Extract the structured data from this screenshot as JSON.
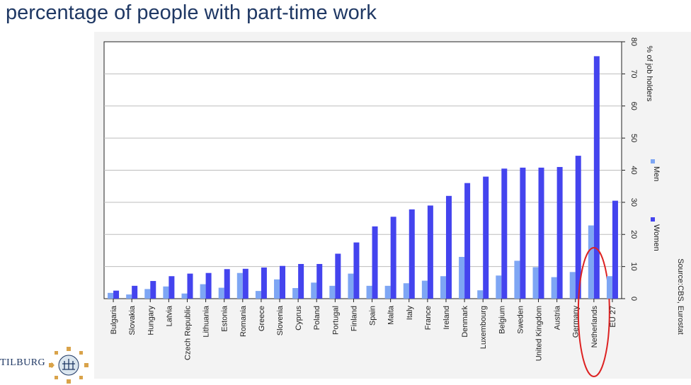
{
  "page": {
    "title": "percentage of people with part-time work"
  },
  "logo": {
    "text": "TILBURG",
    "icon": "university-seal-icon"
  },
  "source": "Source:CBS, Eurostat",
  "colors": {
    "women": "#4444ee",
    "men": "#7ea6f4",
    "highlight": "#dd2222",
    "title": "#1f3864"
  },
  "chart_data": {
    "type": "bar",
    "ylabel": "% of job holders",
    "ylim": [
      0,
      80
    ],
    "yticks": [
      0,
      10,
      20,
      30,
      40,
      50,
      60,
      70,
      80
    ],
    "grid": true,
    "legend_position": "right",
    "highlighted_category": "Netherlands",
    "categories": [
      "Bulgaria",
      "Slovakia",
      "Hungary",
      "Latvia",
      "Czech Republic",
      "Lithuania",
      "Estonia",
      "Romania",
      "Greece",
      "Slovenia",
      "Cyprus",
      "Poland",
      "Portugal",
      "Finland",
      "Spain",
      "Malta",
      "Italy",
      "France",
      "Ireland",
      "Denmark",
      "Luxembourg",
      "Belgium",
      "Sweden",
      "United Kingdom",
      "Austria",
      "Germany",
      "Netherlands",
      "EU 27"
    ],
    "series": [
      {
        "name": "Women",
        "values": [
          2.5,
          4,
          5.5,
          7,
          7.8,
          8,
          9.2,
          9.3,
          9.7,
          10.2,
          10.8,
          10.8,
          14,
          17.5,
          22.5,
          25.5,
          27.8,
          29,
          32,
          36,
          38,
          40.5,
          40.8,
          40.8,
          41,
          44.5,
          75.5,
          30.5
        ]
      },
      {
        "name": "Men",
        "values": [
          1.8,
          1.3,
          3,
          3.8,
          1.6,
          4.5,
          3.4,
          8,
          2.4,
          6,
          3.3,
          5,
          4,
          7.8,
          4,
          4,
          4.8,
          5.6,
          7,
          13,
          2.6,
          7.2,
          11.8,
          9.8,
          6.7,
          8.3,
          22.8,
          7
        ]
      }
    ]
  }
}
